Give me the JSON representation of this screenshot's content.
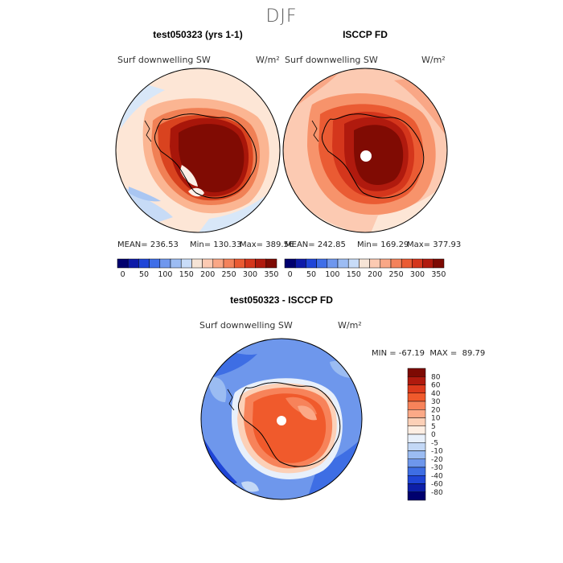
{
  "title": "DJF",
  "panels": [
    {
      "title": "test050323 (yrs 1-1)",
      "variable": "Surf downwelling SW",
      "units": "W/m²",
      "mean": "MEAN= 236.53",
      "min": "Min= 130.33",
      "max": "Max= 389.56"
    },
    {
      "title": "ISCCP FD",
      "variable": "Surf downwelling SW",
      "units": "W/m²",
      "mean": "MEAN= 242.85",
      "min": "Min= 169.29",
      "max": "Max= 377.93"
    },
    {
      "title": "test050323 - ISCCP FD",
      "variable": "Surf downwelling SW",
      "units": "W/m²",
      "minmax": "MIN = -67.19  MAX =  89.79"
    }
  ],
  "colors": {
    "field_levels": [
      "#00006e",
      "#0d1aa8",
      "#1f45d8",
      "#3f6ee8",
      "#6f97ee",
      "#9cbcf3",
      "#c8dcf8",
      "#f6e4d6",
      "#fccab2",
      "#f9a786",
      "#f3825b",
      "#ea5b33",
      "#d4361c",
      "#b01a0e",
      "#7d0a03"
    ],
    "diff_levels": [
      "#7d0a03",
      "#b01a0e",
      "#dd3a1c",
      "#f05a2c",
      "#f7835a",
      "#fba987",
      "#fcd0b7",
      "#fdeee3",
      "#e8f0fb",
      "#c3d8f6",
      "#9bbcf2",
      "#6e97ec",
      "#3e6ee4",
      "#1f45d6",
      "#0d1fa8",
      "#00006e"
    ]
  },
  "chart_data": [
    {
      "type": "heatmap",
      "projection": "south-polar-stereographic",
      "title": "test050323 (yrs 1-1)",
      "variable": "Surf downwelling SW",
      "units": "W/m²",
      "stats": {
        "mean": 236.53,
        "min": 130.33,
        "max": 389.56
      },
      "colorbar_ticks": [
        "0",
        "50",
        "100",
        "150",
        "200",
        "250",
        "300",
        "350"
      ],
      "colorbar_range": [
        0,
        375
      ],
      "colorbar_step": 25
    },
    {
      "type": "heatmap",
      "projection": "south-polar-stereographic",
      "title": "ISCCP FD",
      "variable": "Surf downwelling SW",
      "units": "W/m²",
      "stats": {
        "mean": 242.85,
        "min": 169.29,
        "max": 377.93
      },
      "colorbar_ticks": [
        "0",
        "50",
        "100",
        "150",
        "200",
        "250",
        "300",
        "350"
      ],
      "colorbar_range": [
        0,
        375
      ],
      "colorbar_step": 25
    },
    {
      "type": "heatmap",
      "projection": "south-polar-stereographic",
      "title": "test050323 - ISCCP FD",
      "variable": "Surf downwelling SW",
      "units": "W/m²",
      "stats": {
        "min": -67.19,
        "max": 89.79
      },
      "colorbar_levels": [
        "80",
        "60",
        "40",
        "30",
        "20",
        "10",
        "5",
        "0",
        "-5",
        "-10",
        "-20",
        "-30",
        "-40",
        "-60",
        "-80"
      ]
    }
  ]
}
